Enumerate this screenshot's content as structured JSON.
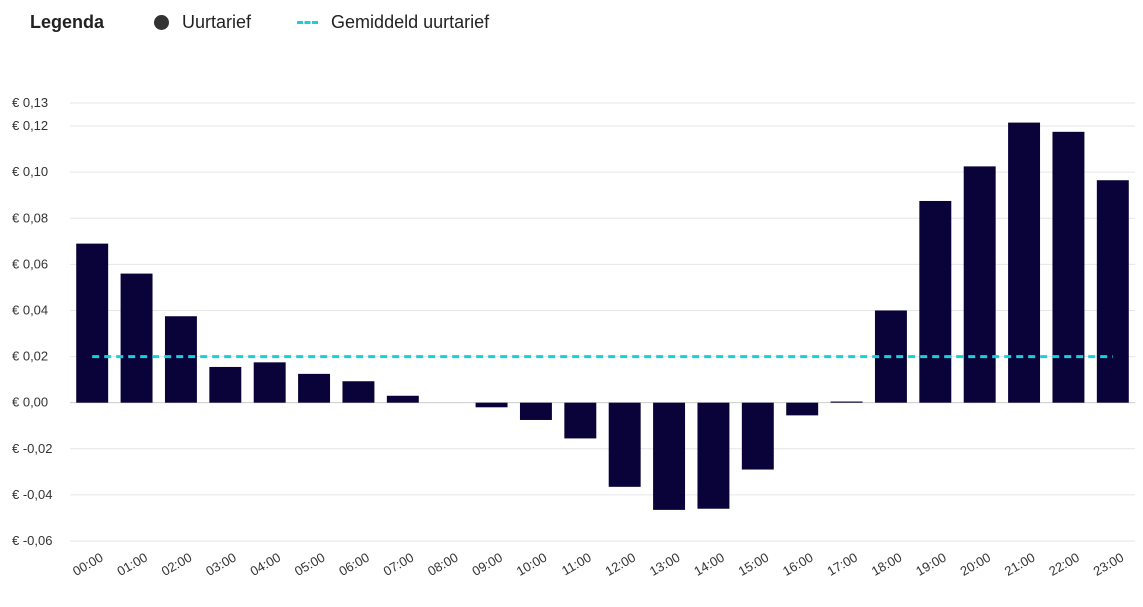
{
  "legend": {
    "title": "Legenda",
    "items": [
      {
        "label": "Uurtarief",
        "marker": "dot"
      },
      {
        "label": "Gemiddeld uurtarief",
        "marker": "dashed-line"
      }
    ]
  },
  "colors": {
    "bar": "#0a0339",
    "average": "#19cfd8",
    "grid": "#e6e6e6",
    "axis": "#cccccc",
    "legend_dot": "#333333"
  },
  "chart_data": {
    "type": "bar",
    "categories": [
      "00:00",
      "01:00",
      "02:00",
      "03:00",
      "04:00",
      "05:00",
      "06:00",
      "07:00",
      "08:00",
      "09:00",
      "10:00",
      "11:00",
      "12:00",
      "13:00",
      "14:00",
      "15:00",
      "16:00",
      "17:00",
      "18:00",
      "19:00",
      "20:00",
      "21:00",
      "22:00",
      "23:00"
    ],
    "series": [
      {
        "name": "Uurtarief",
        "values": [
          0.069,
          0.056,
          0.0375,
          0.0155,
          0.0175,
          0.0125,
          0.0093,
          0.003,
          0,
          -0.002,
          -0.0075,
          -0.0155,
          -0.0365,
          -0.0465,
          -0.046,
          -0.029,
          -0.0055,
          0.0005,
          0.04,
          0.0875,
          0.1025,
          0.1215,
          0.1175,
          0.0965
        ]
      },
      {
        "name": "Gemiddeld uurtarief",
        "type": "line",
        "values": [
          0.02,
          0.02,
          0.02,
          0.02,
          0.02,
          0.02,
          0.02,
          0.02,
          0.02,
          0.02,
          0.02,
          0.02,
          0.02,
          0.02,
          0.02,
          0.02,
          0.02,
          0.02,
          0.02,
          0.02,
          0.02,
          0.02,
          0.02,
          0.02
        ]
      }
    ],
    "yticks": [
      0.13,
      0.12,
      0.1,
      0.08,
      0.06,
      0.04,
      0.02,
      0.0,
      -0.02,
      -0.04,
      -0.06
    ],
    "ytick_labels": [
      "€ 0,13",
      "€ 0,12",
      "€ 0,10",
      "€ 0,08",
      "€ 0,06",
      "€ 0,04",
      "€ 0,02",
      "€ 0,00",
      "€ -0,02",
      "€ -0,04",
      "€ -0,06"
    ],
    "ylim": [
      -0.06,
      0.13
    ],
    "grid": true,
    "legend_position": "top-left"
  }
}
